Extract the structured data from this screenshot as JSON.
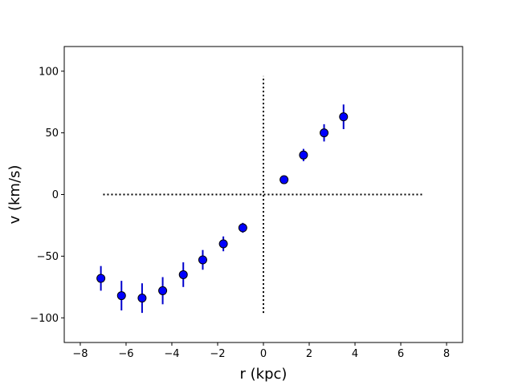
{
  "chart_data": {
    "type": "scatter",
    "xlabel": "r (kpc)",
    "ylabel": "v (km/s)",
    "xlim": [
      -8.7,
      8.7
    ],
    "ylim": [
      -120,
      120
    ],
    "xticks": [
      -8,
      -6,
      -4,
      -2,
      0,
      2,
      4,
      6,
      8
    ],
    "xtick_labels": [
      "−8",
      "−6",
      "−4",
      "−2",
      "0",
      "2",
      "4",
      "6",
      "8"
    ],
    "yticks": [
      -100,
      -50,
      0,
      50,
      100
    ],
    "ytick_labels": [
      "−100",
      "−50",
      "0",
      "50",
      "100"
    ],
    "grid": false,
    "marker_color": "#0000ff",
    "errorbar_color": "#0000cc",
    "reference_lines": {
      "horizontal": {
        "y": 0,
        "x_from": -7,
        "x_to": 7,
        "style": "dotted",
        "color": "#000000"
      },
      "vertical": {
        "x": 0,
        "y_from": -96,
        "y_to": 96,
        "style": "dotted",
        "color": "#000000"
      }
    },
    "points": [
      {
        "x": -7.1,
        "y": -68,
        "err": 10
      },
      {
        "x": -6.2,
        "y": -82,
        "err": 12
      },
      {
        "x": -5.3,
        "y": -84,
        "err": 12
      },
      {
        "x": -4.4,
        "y": -78,
        "err": 11
      },
      {
        "x": -3.5,
        "y": -65,
        "err": 10
      },
      {
        "x": -2.65,
        "y": -53,
        "err": 8
      },
      {
        "x": -1.75,
        "y": -40,
        "err": 6
      },
      {
        "x": -0.9,
        "y": -27,
        "err": 4
      },
      {
        "x": 0.9,
        "y": 12,
        "err": 3
      },
      {
        "x": 1.75,
        "y": 32,
        "err": 5
      },
      {
        "x": 2.65,
        "y": 50,
        "err": 7
      },
      {
        "x": 3.5,
        "y": 63,
        "err": 10
      }
    ]
  }
}
